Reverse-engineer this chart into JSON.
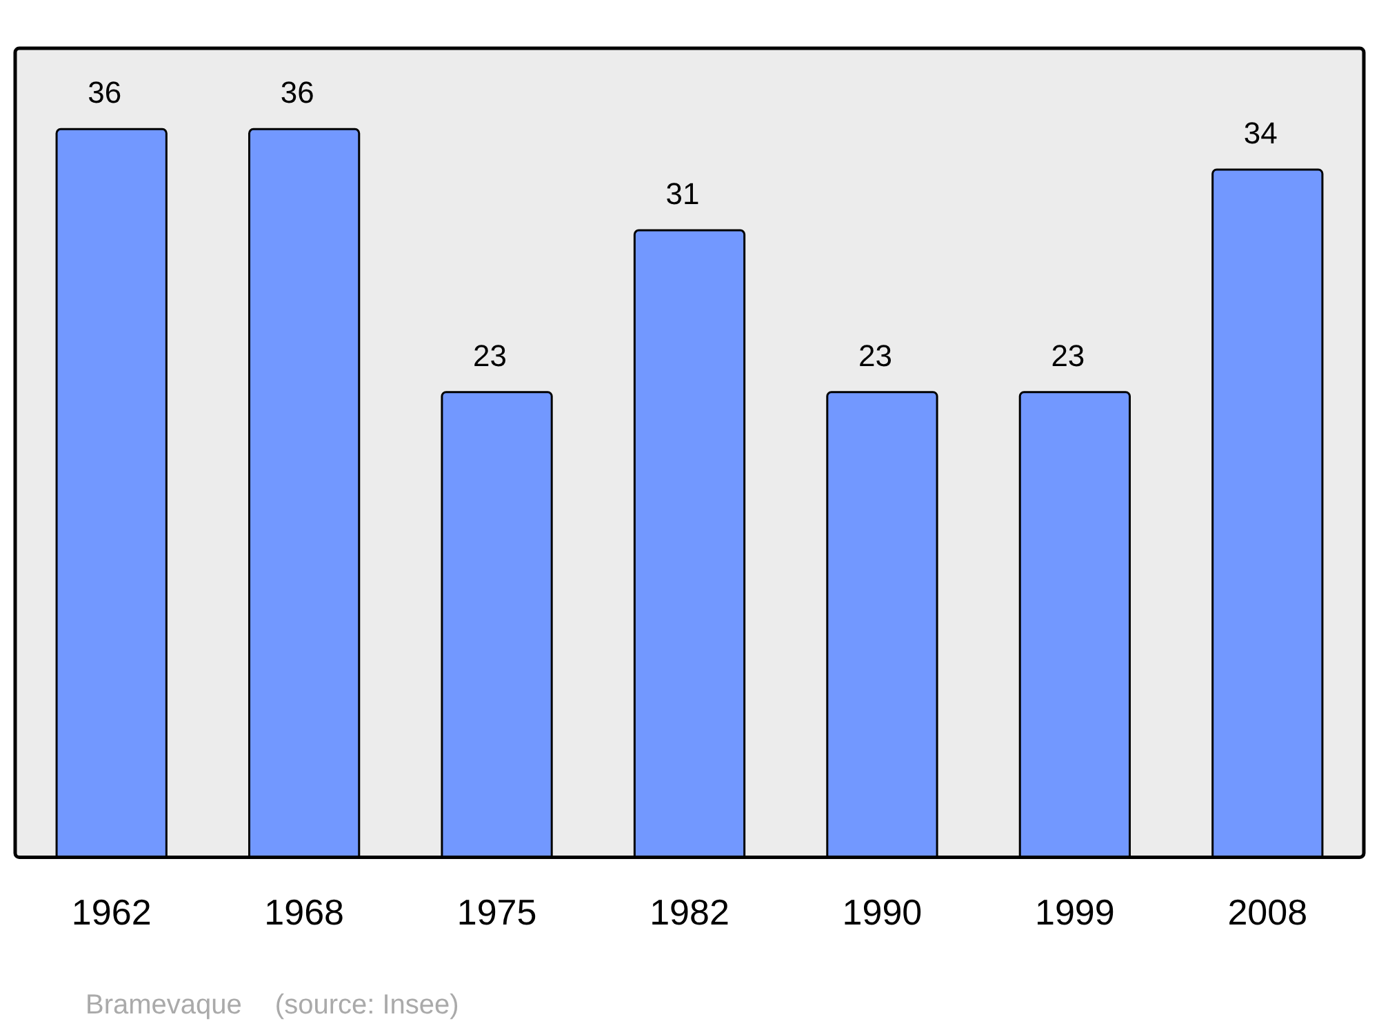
{
  "chart_data": {
    "type": "bar",
    "categories": [
      "1962",
      "1968",
      "1975",
      "1982",
      "1990",
      "1999",
      "2008"
    ],
    "values": [
      36,
      36,
      23,
      31,
      23,
      23,
      34
    ],
    "color": "#7298ff",
    "ylim": [
      0,
      40
    ],
    "tick_labels": "x",
    "grid": false,
    "legend": false,
    "data_labels": true,
    "annotations": [
      "Bramevaque",
      "(source: Insee)"
    ]
  }
}
